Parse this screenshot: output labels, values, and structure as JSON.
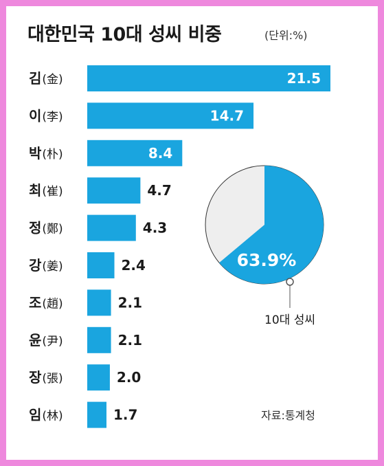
{
  "title": "대한민국 10대 성씨 비중",
  "unit": "(단위:%)",
  "source": "자료:통계청",
  "colors": {
    "bar": "#1aa5df",
    "pie_rest": "#eeeeee",
    "pie_outline": "#333333",
    "frame": "#ee88dd"
  },
  "chart_data": [
    {
      "type": "bar",
      "orientation": "horizontal",
      "categories": [
        "김(金)",
        "이(李)",
        "박(朴)",
        "최(崔)",
        "정(鄭)",
        "강(姜)",
        "조(趙)",
        "윤(尹)",
        "장(張)",
        "임(林)"
      ],
      "values": [
        21.5,
        14.7,
        8.4,
        4.7,
        4.3,
        2.4,
        2.1,
        2.1,
        2.0,
        1.7
      ],
      "value_labels": [
        "21.5",
        "14.7",
        "8.4",
        "4.7",
        "4.3",
        "2.4",
        "2.1",
        "2.1",
        "2.0",
        "1.7"
      ],
      "xlim": [
        0,
        21.5
      ],
      "grid": false,
      "legend": "none"
    },
    {
      "type": "pie",
      "slices": [
        {
          "label": "10대 성씨",
          "value": 63.9,
          "display": "63.9%"
        },
        {
          "label": "",
          "value": 36.1,
          "display": ""
        }
      ],
      "caption": "10대 성씨"
    }
  ]
}
